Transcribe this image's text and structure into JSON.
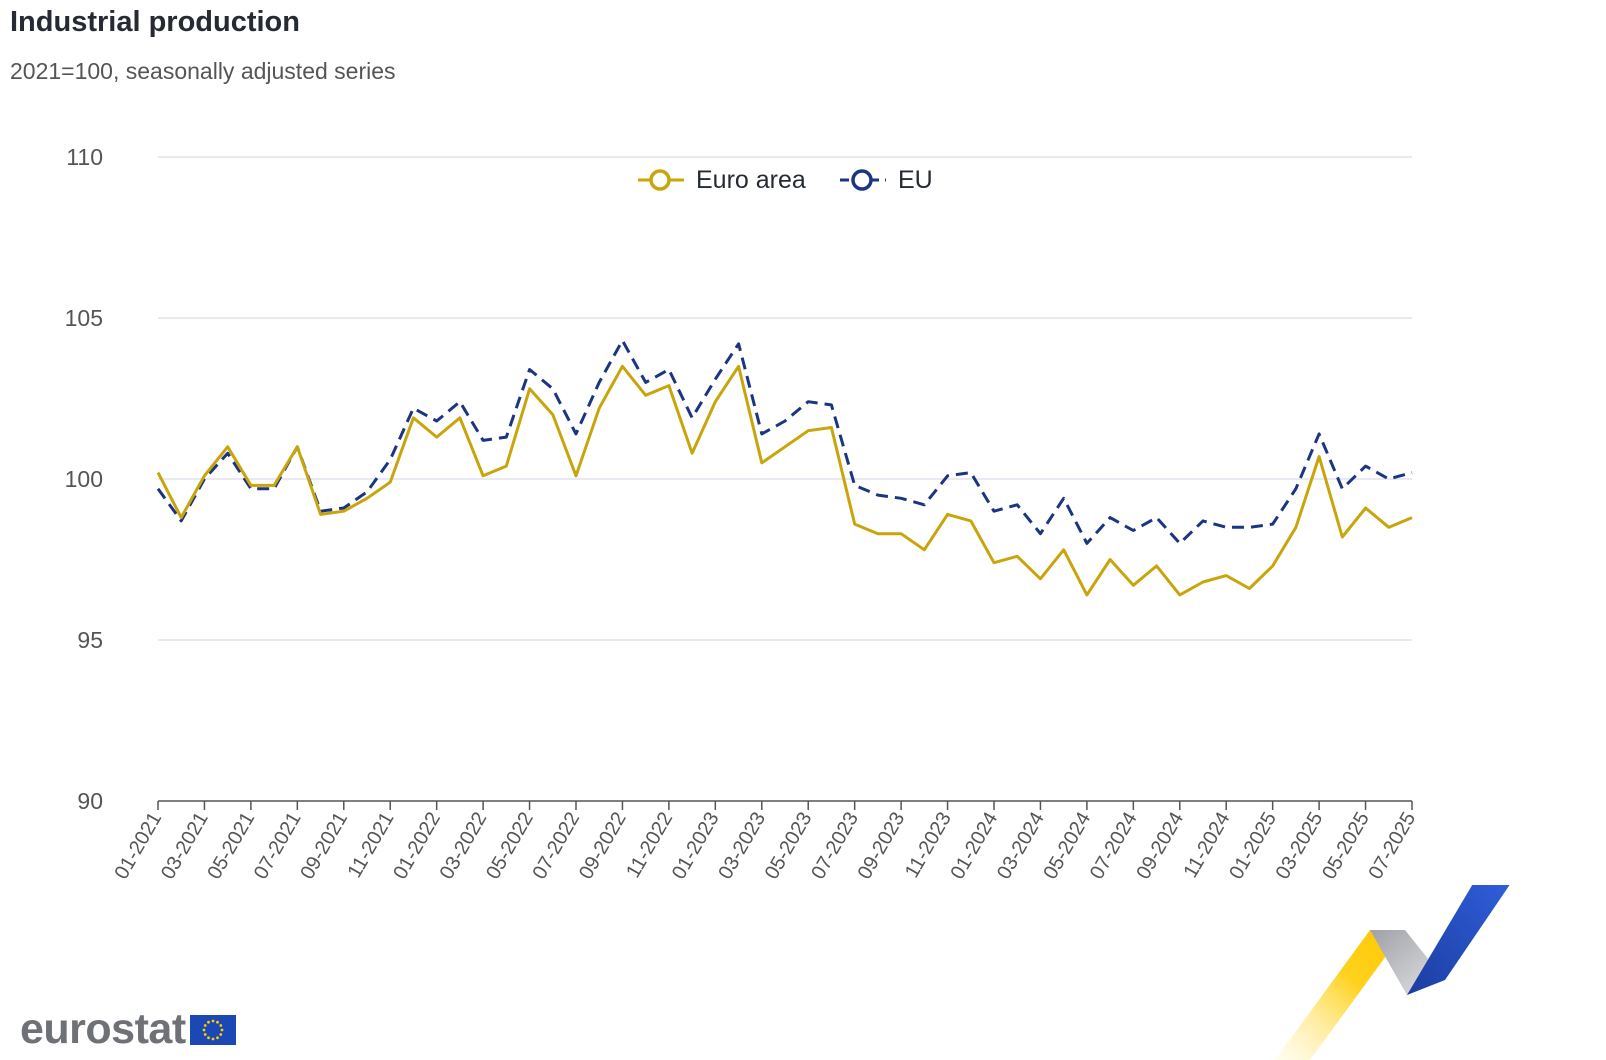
{
  "title": "Industrial production",
  "subtitle": "2021=100, seasonally adjusted series",
  "logo": {
    "text": "eurostat",
    "flag": "eu-flag-icon"
  },
  "colors": {
    "euro_area": "#c9a40b",
    "eu": "#1c3583",
    "grid": "#dfe3ef",
    "axis": "#555555"
  },
  "chart_data": {
    "type": "line",
    "x": [
      "01-2021",
      "02-2021",
      "03-2021",
      "04-2021",
      "05-2021",
      "06-2021",
      "07-2021",
      "08-2021",
      "09-2021",
      "10-2021",
      "11-2021",
      "12-2021",
      "01-2022",
      "02-2022",
      "03-2022",
      "04-2022",
      "05-2022",
      "06-2022",
      "07-2022",
      "08-2022",
      "09-2022",
      "10-2022",
      "11-2022",
      "12-2022",
      "01-2023",
      "02-2023",
      "03-2023",
      "04-2023",
      "05-2023",
      "06-2023",
      "07-2023",
      "08-2023",
      "09-2023",
      "10-2023",
      "11-2023",
      "12-2023",
      "01-2024",
      "02-2024",
      "03-2024",
      "04-2024",
      "05-2024",
      "06-2024",
      "07-2024",
      "08-2024",
      "09-2024",
      "10-2024",
      "11-2024",
      "12-2024",
      "01-2025",
      "02-2025",
      "03-2025",
      "04-2025",
      "05-2025",
      "06-2025",
      "07-2025"
    ],
    "xtick_labels": [
      "01-2021",
      "03-2021",
      "05-2021",
      "07-2021",
      "09-2021",
      "11-2021",
      "01-2022",
      "03-2022",
      "05-2022",
      "07-2022",
      "09-2022",
      "11-2022",
      "01-2023",
      "03-2023",
      "05-2023",
      "07-2023",
      "09-2023",
      "11-2023",
      "01-2024",
      "03-2024",
      "05-2024",
      "07-2024",
      "09-2024",
      "11-2024",
      "01-2025",
      "03-2025",
      "05-2025",
      "07-2025"
    ],
    "series": [
      {
        "name": "Euro area",
        "style": "solid",
        "values": [
          100.2,
          98.8,
          100.1,
          101.0,
          99.8,
          99.8,
          101.0,
          98.9,
          99.0,
          99.4,
          99.9,
          101.9,
          101.3,
          101.9,
          100.1,
          100.4,
          102.8,
          102.0,
          100.1,
          102.2,
          103.5,
          102.6,
          102.9,
          100.8,
          102.4,
          103.5,
          100.5,
          101.0,
          101.5,
          101.6,
          98.6,
          98.3,
          98.3,
          97.8,
          98.9,
          98.7,
          97.4,
          97.6,
          96.9,
          97.8,
          96.4,
          97.5,
          96.7,
          97.3,
          96.4,
          96.8,
          97.0,
          96.6,
          97.3,
          98.5,
          100.7,
          98.2,
          99.1,
          98.5,
          98.8
        ]
      },
      {
        "name": "EU",
        "style": "dashed",
        "values": [
          99.7,
          98.7,
          100.0,
          100.8,
          99.7,
          99.7,
          101.0,
          99.0,
          99.1,
          99.6,
          100.6,
          102.2,
          101.8,
          102.4,
          101.2,
          101.3,
          103.4,
          102.8,
          101.4,
          103.0,
          104.3,
          103.0,
          103.4,
          101.9,
          103.1,
          104.2,
          101.4,
          101.8,
          102.4,
          102.3,
          99.8,
          99.5,
          99.4,
          99.2,
          100.1,
          100.2,
          99.0,
          99.2,
          98.3,
          99.4,
          98.0,
          98.8,
          98.4,
          98.8,
          98.0,
          98.7,
          98.5,
          98.5,
          98.6,
          99.7,
          101.4,
          99.7,
          100.4,
          100.0,
          100.2
        ]
      }
    ],
    "ylim": [
      90,
      110
    ],
    "yticks": [
      90,
      95,
      100,
      105,
      110
    ],
    "grid": true,
    "legend_position": "top-center"
  }
}
